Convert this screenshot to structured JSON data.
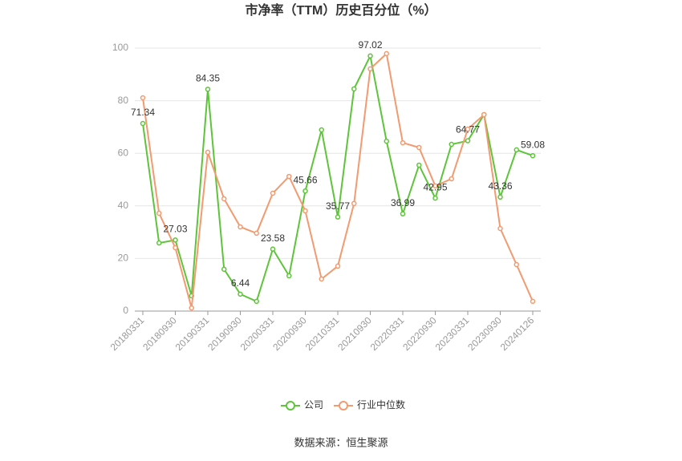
{
  "chart_data": {
    "type": "line",
    "title": "市净率（TTM）历史百分位（%）",
    "categories": [
      "20180331",
      null,
      "20180930",
      null,
      "20190331",
      null,
      "20190930",
      null,
      "20200331",
      null,
      "20200930",
      null,
      "20210331",
      null,
      "20210930",
      null,
      "20220331",
      null,
      "20220930",
      null,
      "20230331",
      null,
      "20230930",
      null,
      "20240126"
    ],
    "series": [
      {
        "name": "公司",
        "color": "#5ec43a",
        "values": [
          71.34,
          25.9,
          27.03,
          5.8,
          84.35,
          15.9,
          6.44,
          3.7,
          23.58,
          13.4,
          45.66,
          68.9,
          35.77,
          84.5,
          97.02,
          64.6,
          36.99,
          55.5,
          42.95,
          63.4,
          64.77,
          74.7,
          43.36,
          61.3,
          59.08
        ],
        "value_labels": [
          "71.34",
          null,
          "27.03",
          null,
          "84.35",
          null,
          "6.44",
          null,
          "23.58",
          null,
          "45.66",
          null,
          "35.77",
          null,
          "97.02",
          null,
          "36.99",
          null,
          "42.95",
          null,
          "64.77",
          null,
          "43.36",
          null,
          "59.08"
        ]
      },
      {
        "name": "行业中位数",
        "color": "#f29a70",
        "values": [
          81.1,
          37.2,
          24.1,
          1.2,
          60.4,
          42.7,
          32.0,
          29.6,
          44.8,
          51.2,
          38.1,
          12.2,
          17.1,
          40.9,
          92.1,
          97.9,
          64.0,
          62.2,
          47.6,
          50.3,
          69.2,
          74.7,
          31.4,
          17.7,
          3.7
        ]
      }
    ],
    "ylim": [
      0,
      100
    ],
    "yticks": [
      0,
      20,
      40,
      60,
      80,
      100
    ],
    "grid": true,
    "source": "数据来源：恒生聚源"
  }
}
